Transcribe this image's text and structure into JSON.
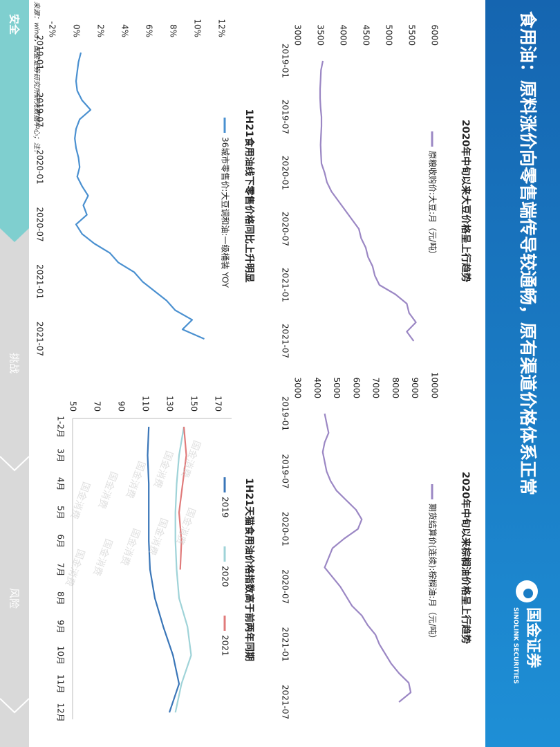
{
  "header": {
    "title": "食用油：原料涨价向零售端传导较通畅，原有渠道价格体系正常",
    "logo": "国金证券",
    "logo_en": "SINOLINK SECURITIES"
  },
  "watermark": "国金消费",
  "chart_data": [
    {
      "type": "line",
      "title": "2020年中旬以来大豆价格呈上行趋势",
      "categories": [
        "2019-01",
        null,
        null,
        null,
        null,
        null,
        "2019-07",
        null,
        null,
        null,
        null,
        null,
        "2020-01",
        null,
        null,
        null,
        null,
        null,
        "2020-07",
        null,
        null,
        null,
        null,
        null,
        "2021-01",
        null,
        null,
        null,
        null,
        null,
        "2021-07"
      ],
      "series": [
        {
          "name": "原粮收购价:大豆:月（元/吨）",
          "color": "#9b87c4",
          "values": [
            3560,
            3520,
            3510,
            3500,
            3500,
            3510,
            3530,
            3530,
            3520,
            3510,
            3520,
            3530,
            3600,
            3650,
            3750,
            3900,
            4050,
            4200,
            4350,
            4400,
            4500,
            4550,
            4650,
            4700,
            4800,
            5150,
            5400,
            5450,
            5600,
            5400,
            5550
          ]
        }
      ],
      "ylim": [
        3000,
        6000
      ],
      "yticks": [
        3000,
        3500,
        4000,
        4500,
        5000,
        5500,
        6000
      ],
      "grid": false
    },
    {
      "type": "line",
      "title": "2020年中旬以来棕榈油价格呈上行趋势",
      "categories": [
        "2019-01",
        null,
        null,
        null,
        null,
        null,
        "2019-07",
        null,
        null,
        null,
        null,
        null,
        "2020-01",
        null,
        null,
        null,
        null,
        null,
        "2020-07",
        null,
        null,
        null,
        null,
        null,
        "2021-01",
        null,
        null,
        null,
        null,
        null,
        "2021-07"
      ],
      "series": [
        {
          "name": "期货结算价(连续):棕榈油:月（元/吨）",
          "color": "#9b87c4",
          "values": [
            4400,
            4500,
            4600,
            4400,
            4300,
            4400,
            4500,
            4700,
            5000,
            5500,
            6000,
            6300,
            6100,
            5400,
            4800,
            4600,
            4400,
            4800,
            5200,
            5500,
            5800,
            6300,
            6600,
            7000,
            7200,
            7500,
            7800,
            8200,
            8700,
            8800,
            8200
          ]
        }
      ],
      "ylim": [
        3000,
        10000
      ],
      "yticks": [
        3000,
        4000,
        5000,
        6000,
        7000,
        8000,
        9000,
        10000
      ],
      "grid": false
    },
    {
      "type": "line",
      "title": "1H21食用油线下零售价格同比上升明显",
      "categories": [
        "2019-01",
        null,
        null,
        null,
        null,
        null,
        "2019-07",
        null,
        null,
        null,
        null,
        null,
        "2020-01",
        null,
        null,
        null,
        null,
        null,
        "2020-07",
        null,
        null,
        null,
        null,
        null,
        "2021-01",
        null,
        null,
        null,
        null,
        null,
        "2021-07"
      ],
      "series": [
        {
          "name": "36城市零售价:大豆调和油:一级桶装 YOY",
          "color": "#4a90d0",
          "values": [
            0.4,
            0.2,
            0.1,
            0.0,
            0.1,
            0.5,
            1.2,
            0.3,
            0.0,
            -0.1,
            0.0,
            0.2,
            0.3,
            0.1,
            0.5,
            1.0,
            0.6,
            0.9,
            0.0,
            0.5,
            1.5,
            2.8,
            3.5,
            4.8,
            5.5,
            6.5,
            7.5,
            8.2,
            9.6,
            8.8,
            10.6
          ]
        }
      ],
      "ylim": [
        -2,
        12
      ],
      "yticks": [
        {
          "value": -2,
          "label": "-2%"
        },
        {
          "value": 0,
          "label": "0%"
        },
        {
          "value": 2,
          "label": "2%"
        },
        {
          "value": 4,
          "label": "4%"
        },
        {
          "value": 6,
          "label": "6%"
        },
        {
          "value": 8,
          "label": "8%"
        },
        {
          "value": 10,
          "label": "10%"
        },
        {
          "value": 12,
          "label": "12%"
        }
      ],
      "grid": false
    },
    {
      "type": "line",
      "title": "1H21天猫食用油价格指数高于前两年同期",
      "categories": [
        "1-2月",
        "3月",
        "4月",
        "5月",
        "6月",
        "7月",
        "8月",
        "9月",
        "10月",
        "11月",
        "12月"
      ],
      "series": [
        {
          "name": "2019",
          "color": "#3a76b8",
          "values": [
            113,
            112,
            113,
            113,
            113,
            114,
            118,
            125,
            133,
            138,
            130
          ]
        },
        {
          "name": "2020",
          "color": "#9fd3d8",
          "values": [
            142,
            138,
            136,
            135,
            135,
            136,
            138,
            145,
            148,
            140,
            135
          ]
        },
        {
          "name": "2021",
          "color": "#e07b7b",
          "values": [
            142,
            144,
            141,
            138,
            140,
            139,
            null,
            null,
            null,
            null,
            null
          ]
        }
      ],
      "ylim": [
        50,
        170
      ],
      "yticks": [
        50,
        70,
        90,
        110,
        130,
        150,
        170
      ],
      "grid": false
    }
  ],
  "source": "来源：wind，国金证券研究所研究数据中心；注：",
  "nav": [
    "安全",
    "挑战",
    "风险"
  ]
}
